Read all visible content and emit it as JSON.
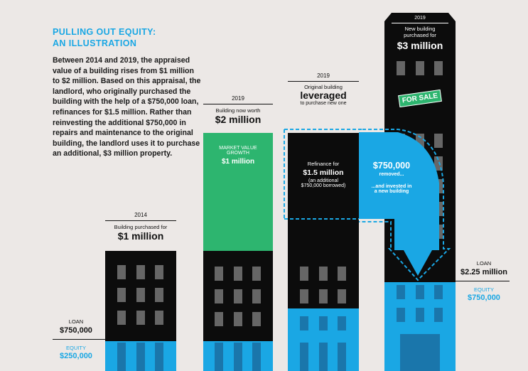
{
  "heading": {
    "line1": "PULLING OUT EQUITY:",
    "line2": "AN ILLUSTRATION"
  },
  "intro": "Between 2014 and 2019, the appraised value of a building rises from $1 million to $2 million. Based on this appraisal, the landlord, who originally purchased the building with the help of a $750,000 loan, refinances for $1.5 million. Rather than reinvesting the additional $750,000 in repairs and maintenance to the original building, the landlord uses it to purchase an additional, $3 million property.",
  "stage1": {
    "year": "2014",
    "caption": "Building purchased for",
    "value": "$1 million",
    "loan_label": "LOAN",
    "loan_value": "$750,000",
    "equity_label": "EQUITY",
    "equity_value": "$250,000"
  },
  "stage2": {
    "year": "2019",
    "caption": "Building now worth",
    "value": "$2 million",
    "growth_label1": "MARKET VALUE",
    "growth_label2": "GROWTH",
    "growth_value": "$1 million"
  },
  "stage3": {
    "year": "2019",
    "caption": "Original building",
    "value": "leveraged",
    "caption2": "to purchase new one",
    "refi_label": "Refinance for",
    "refi_value": "$1.5 million",
    "refi_note1": "(an additional",
    "refi_note2": "$750,000 borrowed)",
    "removed_value": "$750,000",
    "removed_label": "removed...",
    "invested1": "...and invested in",
    "invested2": "a new building"
  },
  "stage4": {
    "year": "2019",
    "caption1": "New building",
    "caption2": "purchased for",
    "value": "$3 million",
    "sign": "FOR SALE",
    "loan_label": "LOAN",
    "loan_value": "$2.25 million",
    "equity_label": "EQUITY",
    "equity_value": "$750,000"
  },
  "colors": {
    "blue": "#1aa7e4",
    "green": "#2db56f",
    "black": "#0c0c0c",
    "window": "#666666",
    "background": "#ece8e6"
  }
}
